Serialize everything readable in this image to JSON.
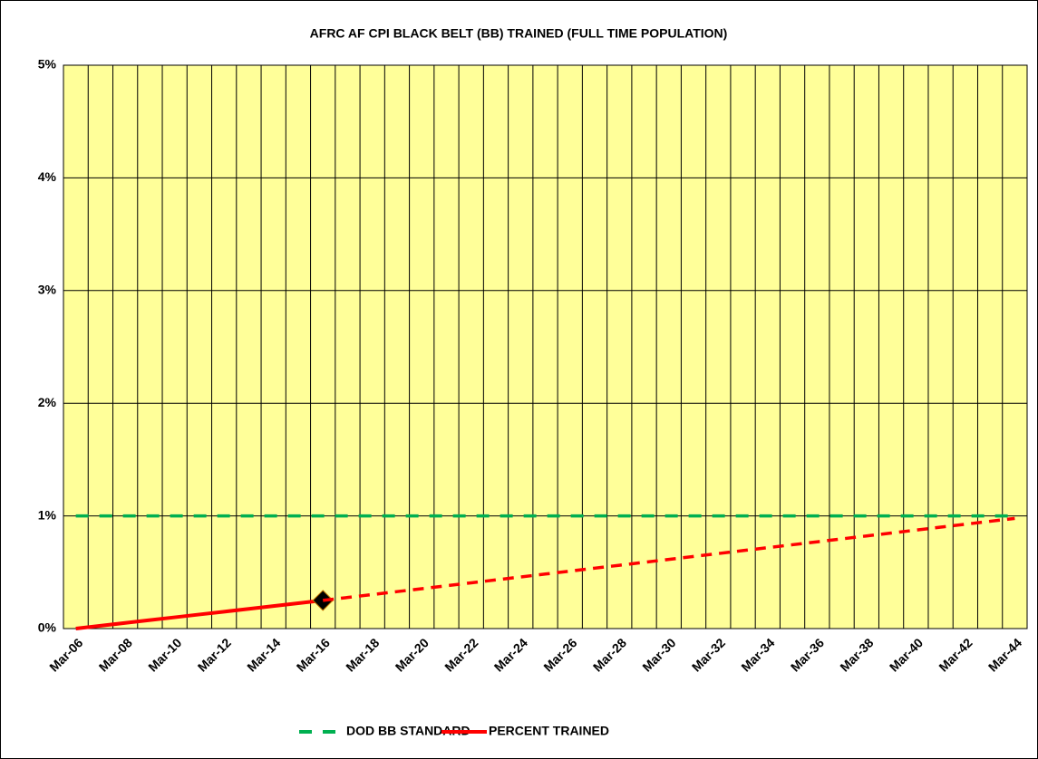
{
  "chart_data": {
    "type": "line",
    "title": "AFRC AF CPI BLACK BELT (BB) TRAINED (FULL TIME POPULATION)",
    "categories": [
      "Mar-06",
      null,
      "Mar-08",
      null,
      "Mar-10",
      null,
      "Mar-12",
      null,
      "Mar-14",
      null,
      "Mar-16",
      null,
      "Mar-18",
      null,
      "Mar-20",
      null,
      "Mar-22",
      null,
      "Mar-24",
      null,
      "Mar-26",
      null,
      "Mar-28",
      null,
      "Mar-30",
      null,
      "Mar-32",
      null,
      "Mar-34",
      null,
      "Mar-36",
      null,
      "Mar-38",
      null,
      "Mar-40",
      null,
      "Mar-42",
      null,
      "Mar-44"
    ],
    "series": [
      {
        "name": "DOD BB STANDARD",
        "color": "#00b050",
        "dashed": true,
        "values": [
          1,
          1,
          1,
          1,
          1,
          1,
          1,
          1,
          1,
          1,
          1,
          1,
          1,
          1,
          1,
          1,
          1,
          1,
          1,
          1,
          1,
          1,
          1,
          1,
          1,
          1,
          1,
          1,
          1,
          1,
          1,
          1,
          1,
          1,
          1,
          1,
          1,
          1,
          1
        ]
      },
      {
        "name": "PERCENT TRAINED",
        "color": "#ff0000",
        "dashed": false,
        "values": [
          0,
          0.025,
          0.05,
          0.075,
          0.1,
          0.125,
          0.15,
          0.175,
          0.2,
          0.225,
          0.25,
          null,
          null,
          null,
          null,
          null,
          null,
          null,
          null,
          null,
          null,
          null,
          null,
          null,
          null,
          null,
          null,
          null,
          null,
          null,
          null,
          null,
          null,
          null,
          null,
          null,
          null,
          null,
          null
        ]
      },
      {
        "color": "#ff0000",
        "dashed": true,
        "values": [
          null,
          null,
          null,
          null,
          null,
          null,
          null,
          null,
          null,
          null,
          0.25,
          0.276,
          0.302,
          0.328,
          0.354,
          0.38,
          0.406,
          0.432,
          0.458,
          0.484,
          0.51,
          0.536,
          0.562,
          0.588,
          0.614,
          0.64,
          0.666,
          0.692,
          0.718,
          0.744,
          0.77,
          0.796,
          0.822,
          0.848,
          0.874,
          0.9,
          0.926,
          0.952,
          0.978
        ]
      }
    ],
    "ylim": [
      0,
      5
    ],
    "yticks": [
      {
        "value": 0,
        "label": "0%"
      },
      {
        "value": 1,
        "label": "1%"
      },
      {
        "value": 2,
        "label": "2%"
      },
      {
        "value": 3,
        "label": "3%"
      },
      {
        "value": 4,
        "label": "4%"
      },
      {
        "value": 5,
        "label": "5%"
      }
    ],
    "grid": true,
    "plot_color": "#ffff99"
  }
}
